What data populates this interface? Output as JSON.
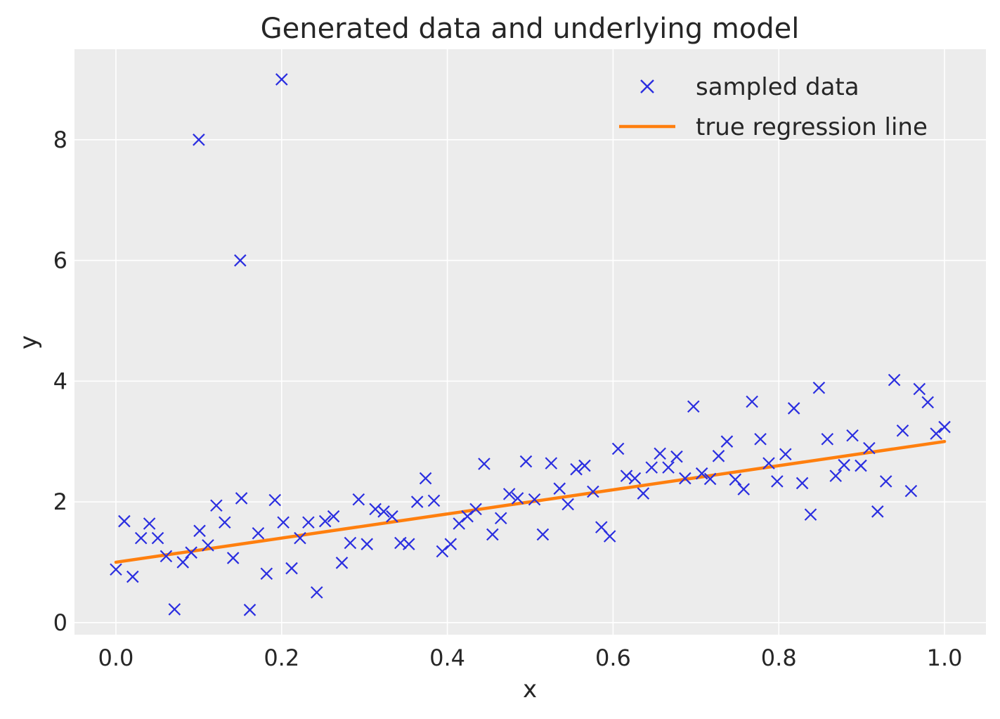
{
  "chart_data": {
    "type": "scatter",
    "title": "Generated data and underlying model",
    "xlabel": "x",
    "ylabel": "y",
    "xlim": [
      -0.05,
      1.05
    ],
    "ylim": [
      -0.2,
      9.5
    ],
    "xticks": [
      0.0,
      0.2,
      0.4,
      0.6,
      0.8,
      1.0
    ],
    "xtick_labels": [
      "0.0",
      "0.2",
      "0.4",
      "0.6",
      "0.8",
      "1.0"
    ],
    "yticks": [
      0,
      2,
      4,
      6,
      8
    ],
    "ytick_labels": [
      "0",
      "2",
      "4",
      "6",
      "8"
    ],
    "grid": true,
    "background": "#ececec",
    "legend_position": "top-right",
    "series": [
      {
        "name": "sampled data",
        "kind": "marker-x",
        "color": "#2a2ee0",
        "x": [
          0.0,
          0.0101,
          0.0202,
          0.0303,
          0.0404,
          0.0505,
          0.0606,
          0.0707,
          0.0808,
          0.0909,
          0.1,
          0.101,
          0.1111,
          0.1212,
          0.1313,
          0.1414,
          0.15,
          0.1515,
          0.1616,
          0.1717,
          0.1818,
          0.1919,
          0.2,
          0.202,
          0.2121,
          0.2222,
          0.2323,
          0.2424,
          0.2525,
          0.2626,
          0.2727,
          0.2828,
          0.2929,
          0.303,
          0.3131,
          0.3232,
          0.3333,
          0.3434,
          0.3535,
          0.3636,
          0.3737,
          0.3838,
          0.3939,
          0.404,
          0.4141,
          0.4242,
          0.4343,
          0.4444,
          0.4545,
          0.4646,
          0.4747,
          0.4848,
          0.4949,
          0.5051,
          0.5152,
          0.5253,
          0.5354,
          0.5455,
          0.5556,
          0.5657,
          0.5758,
          0.5859,
          0.596,
          0.6061,
          0.6162,
          0.6263,
          0.6364,
          0.6465,
          0.6566,
          0.6667,
          0.6768,
          0.6869,
          0.697,
          0.7071,
          0.7172,
          0.7273,
          0.7374,
          0.7475,
          0.7576,
          0.7677,
          0.7778,
          0.7879,
          0.798,
          0.8081,
          0.8182,
          0.8283,
          0.8384,
          0.8485,
          0.8586,
          0.8687,
          0.8788,
          0.8889,
          0.899,
          0.9091,
          0.9192,
          0.9293,
          0.9394,
          0.9495,
          0.9596,
          0.9697,
          0.9798,
          0.9899,
          1.0
        ],
        "y": [
          0.88,
          1.68,
          0.76,
          1.4,
          1.64,
          1.4,
          1.1,
          0.22,
          1.0,
          1.16,
          8.0,
          1.52,
          1.28,
          1.94,
          1.66,
          1.07,
          6.0,
          2.06,
          0.21,
          1.48,
          0.81,
          2.03,
          9.0,
          1.66,
          0.9,
          1.4,
          1.66,
          0.5,
          1.68,
          1.76,
          0.99,
          1.32,
          2.04,
          1.3,
          1.88,
          1.84,
          1.76,
          1.32,
          1.3,
          2.0,
          2.39,
          2.02,
          1.18,
          1.3,
          1.64,
          1.76,
          1.88,
          2.63,
          1.46,
          1.73,
          2.13,
          2.06,
          2.67,
          2.04,
          1.46,
          2.64,
          2.22,
          1.96,
          2.54,
          2.6,
          2.17,
          1.58,
          1.43,
          2.88,
          2.43,
          2.39,
          2.14,
          2.57,
          2.8,
          2.57,
          2.75,
          2.39,
          3.58,
          2.47,
          2.38,
          2.76,
          3.0,
          2.37,
          2.21,
          3.66,
          3.04,
          2.64,
          2.34,
          2.79,
          3.55,
          2.31,
          1.79,
          3.89,
          3.04,
          2.43,
          2.61,
          3.1,
          2.6,
          2.89,
          1.84,
          2.34,
          4.02,
          3.18,
          2.18,
          3.87,
          3.65,
          3.13,
          3.24
        ]
      },
      {
        "name": "true regression line",
        "kind": "line",
        "color": "#ff7f0e",
        "x": [
          0.0,
          1.0
        ],
        "y": [
          1.0,
          3.0
        ]
      }
    ]
  }
}
